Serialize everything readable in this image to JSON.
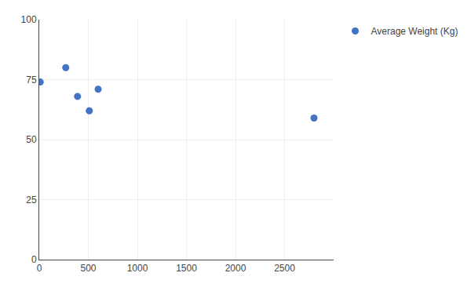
{
  "chart_data": {
    "type": "scatter",
    "x": [
      10,
      270,
      390,
      510,
      600,
      2800
    ],
    "series": [
      {
        "name": "Average Weight (Kg)",
        "color": "#4472C4",
        "values": [
          74,
          80,
          68,
          62,
          71,
          59
        ]
      }
    ],
    "xlim": [
      0,
      3000
    ],
    "ylim": [
      0,
      100
    ],
    "xticks": [
      0,
      500,
      1000,
      1500,
      2000,
      2500
    ],
    "yticks": [
      0,
      25,
      50,
      75,
      100
    ],
    "grid": true,
    "legend": "upper right"
  }
}
